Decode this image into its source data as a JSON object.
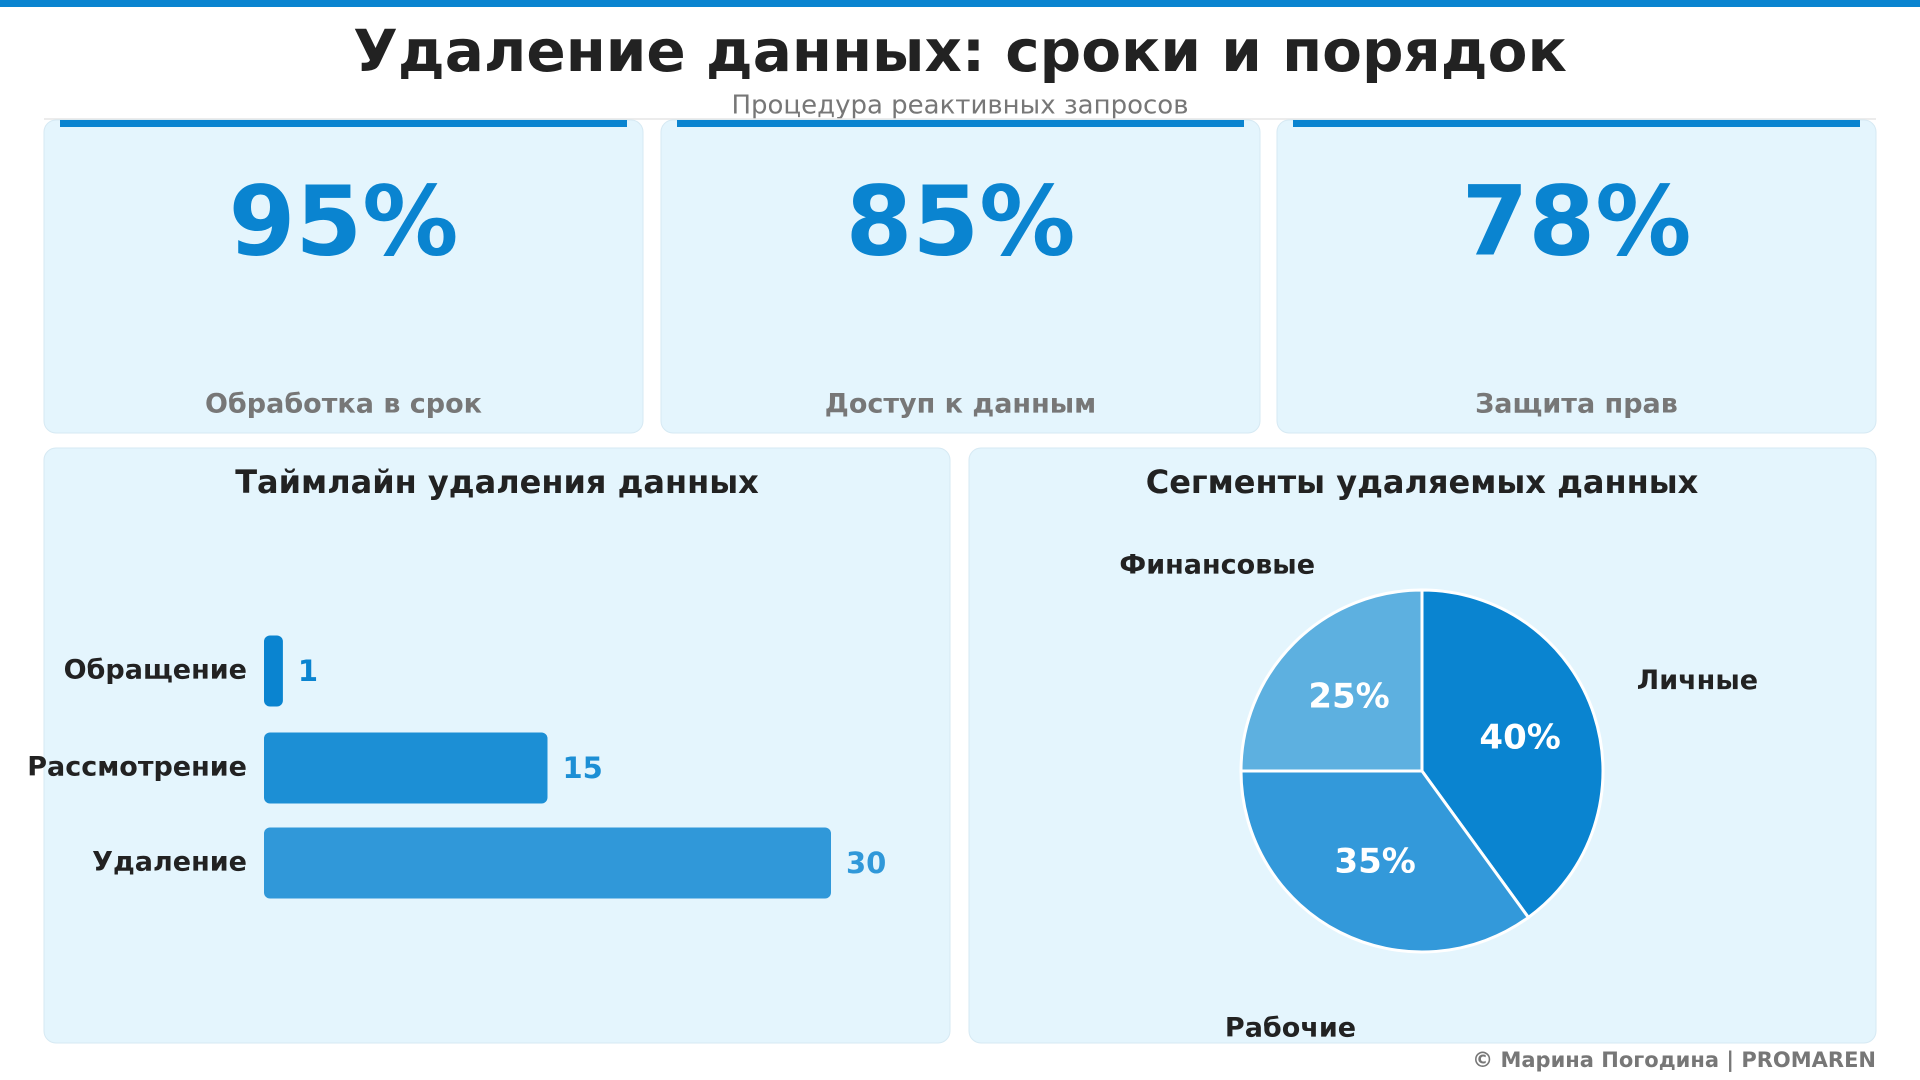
{
  "header": {
    "title": "Удаление данных: сроки и порядок",
    "subtitle": "Процедура реактивных запросов"
  },
  "kpis": [
    {
      "value": "95%",
      "label": "Обработка в срок"
    },
    {
      "value": "85%",
      "label": "Доступ к данным"
    },
    {
      "value": "78%",
      "label": "Защита прав"
    }
  ],
  "chart_data": [
    {
      "type": "bar",
      "orientation": "horizontal",
      "title": "Таймлайн удаления данных",
      "categories": [
        "Обращение",
        "Рассмотрение",
        "Удаление"
      ],
      "values": [
        1,
        15,
        30
      ],
      "colors": [
        "#0a84d0",
        "#1c8fd5",
        "#3098d9"
      ]
    },
    {
      "type": "pie",
      "title": "Сегменты удаляемых данных",
      "categories": [
        "Личные",
        "Рабочие",
        "Финансовые"
      ],
      "values": [
        40,
        35,
        25
      ],
      "value_labels": [
        "40%",
        "35%",
        "25%"
      ],
      "colors": [
        "#0a84d0",
        "#3399da",
        "#5db0e0"
      ]
    }
  ],
  "footer": "© Марина Погодина | PROMAREN"
}
